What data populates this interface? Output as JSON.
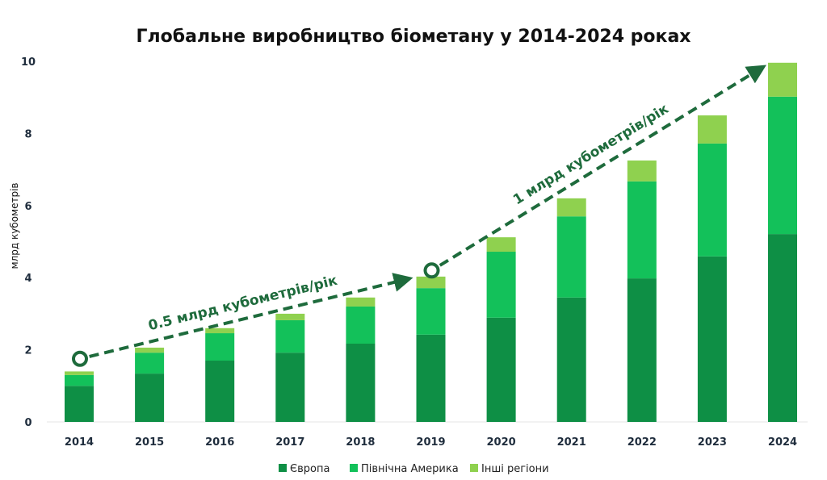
{
  "chart_data": {
    "type": "bar",
    "stacked": true,
    "title": "Глобальне виробництво біометану у 2014-2024 роках",
    "xlabel": "",
    "ylabel": "млрд кубометрів",
    "ylim": [
      0,
      10
    ],
    "yticks": [
      0,
      2,
      4,
      6,
      8,
      10
    ],
    "grid": false,
    "legend_position": "bottom",
    "categories": [
      "2014",
      "2015",
      "2016",
      "2017",
      "2018",
      "2019",
      "2020",
      "2021",
      "2022",
      "2023",
      "2024"
    ],
    "series": [
      {
        "name": "Європа",
        "color": "#0e8f45",
        "values": [
          1.0,
          1.34,
          1.7,
          1.92,
          2.17,
          2.42,
          2.89,
          3.45,
          3.98,
          4.59,
          5.21
        ]
      },
      {
        "name": "Північна Америка",
        "color": "#13c15a",
        "values": [
          0.3,
          0.58,
          0.76,
          0.9,
          1.03,
          1.29,
          1.83,
          2.25,
          2.69,
          3.13,
          3.81
        ]
      },
      {
        "name": "Інші регіони",
        "color": "#8fd14f",
        "values": [
          0.1,
          0.14,
          0.14,
          0.18,
          0.25,
          0.32,
          0.4,
          0.5,
          0.58,
          0.78,
          0.94
        ]
      }
    ],
    "annotations": [
      {
        "text": "0.5 млрд кубометрів/рік",
        "from": [
          "2014",
          1.75
        ],
        "to": [
          "2019",
          4.0
        ]
      },
      {
        "text": "1 млрд кубометрів/рік",
        "from": [
          "2019",
          4.2
        ],
        "to": [
          "2024",
          9.9
        ]
      }
    ],
    "annotation_color": "#1e6b3c"
  }
}
